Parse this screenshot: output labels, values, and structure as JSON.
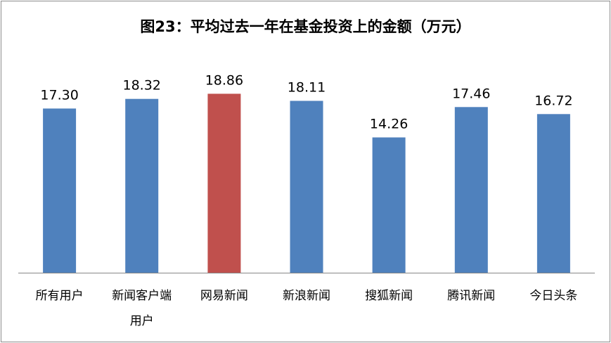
{
  "chart_data": {
    "type": "bar",
    "title": "图23：平均过去一年在基金投资上的金额（万元）",
    "categories": [
      [
        "所有用户"
      ],
      [
        "新闻客户端",
        "用户"
      ],
      [
        "网易新闻"
      ],
      [
        "新浪新闻"
      ],
      [
        "搜狐新闻"
      ],
      [
        "腾讯新闻"
      ],
      [
        "今日头条"
      ]
    ],
    "values": [
      17.3,
      18.32,
      18.86,
      18.11,
      14.26,
      17.46,
      16.72
    ],
    "value_labels": [
      "17.30",
      "18.32",
      "18.86",
      "18.11",
      "14.26",
      "17.46",
      "16.72"
    ],
    "highlight_index": 2,
    "colors": {
      "bar": "#4f81bd",
      "highlight": "#c0504d",
      "axis": "#868686"
    },
    "ylim": [
      0,
      20
    ],
    "grid": false,
    "legend": "none"
  }
}
